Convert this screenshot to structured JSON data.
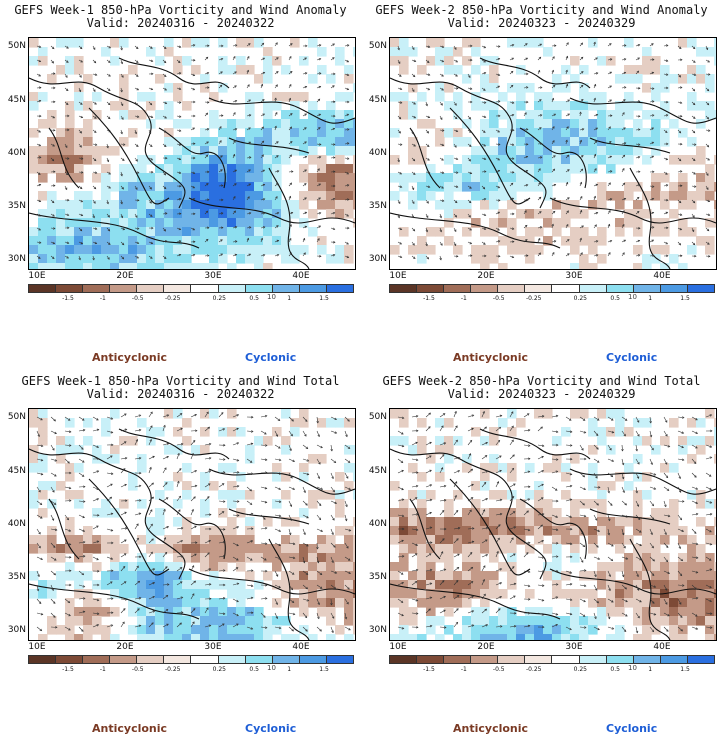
{
  "panels": [
    {
      "line1": "GEFS Week-1 850-hPa Vorticity and Wind Anomaly",
      "line2": "Valid: 20240316 - 20240322"
    },
    {
      "line1": "GEFS Week-2 850-hPa Vorticity and Wind Anomaly",
      "line2": "Valid: 20240323 - 20240329"
    },
    {
      "line1": "GEFS Week-1 850-hPa Vorticity and Wind Total",
      "line2": "Valid: 20240316 - 20240322"
    },
    {
      "line1": "GEFS Week-2 850-hPa Vorticity and Wind Total",
      "line2": "Valid: 20240323 - 20240329"
    }
  ],
  "lat_labels": [
    "50N",
    "45N",
    "40N",
    "35N",
    "30N"
  ],
  "lon_labels": [
    "10E",
    "20E",
    "30E",
    "40E"
  ],
  "colorbar": {
    "labels": [
      "-1.5",
      "-1",
      "-0.5",
      "-0.25",
      "0.25",
      "0.5",
      "1",
      "1.5"
    ],
    "scale_label": "10",
    "colors": [
      "#5b3526",
      "#7d4a36",
      "#a06d58",
      "#c49a88",
      "#e5cec3",
      "#f3e7e0",
      "#ffffff",
      "#c8f0f8",
      "#8ddff0",
      "#70b4e8",
      "#4c9ae3",
      "#2a6fe0"
    ]
  },
  "legend": {
    "anticyclonic": "Anticyclonic",
    "cyclonic": "Cyclonic"
  },
  "colors": {
    "anticyclonic": "#7a3a24",
    "cyclonic": "#1e5ed6"
  }
}
